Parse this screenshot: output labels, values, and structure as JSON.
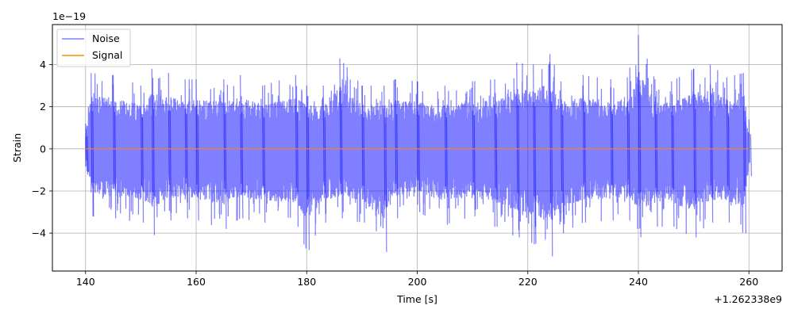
{
  "chart_data": {
    "type": "line",
    "xlabel": "Time [s]",
    "ylabel": "Strain",
    "x_offset_label": "+1.262338e9",
    "y_scale_label": "1e−19",
    "xlim": [
      134,
      266
    ],
    "ylim": [
      -5.8,
      5.9
    ],
    "x_ticks": [
      140,
      160,
      180,
      200,
      220,
      240,
      260
    ],
    "x_tick_labels": [
      "140",
      "160",
      "180",
      "200",
      "220",
      "240",
      "260"
    ],
    "y_ticks": [
      -4,
      -2,
      0,
      2,
      4
    ],
    "y_tick_labels": [
      "−4",
      "−2",
      "0",
      "2",
      "4"
    ],
    "grid": true,
    "legend_position": "top-left",
    "series": [
      {
        "name": "Noise",
        "color": "#0000ff",
        "opacity": 0.5,
        "x_range": [
          140,
          260
        ],
        "envelope": {
          "x": [
            140,
            141,
            145,
            150,
            152,
            155,
            158,
            160,
            165,
            168,
            172,
            178,
            180,
            183,
            186,
            190,
            194,
            196,
            200,
            205,
            210,
            214,
            218,
            221,
            224,
            226,
            230,
            235,
            238,
            240,
            243,
            246,
            250,
            253,
            256,
            259,
            260
          ],
          "upper": [
            1.2,
            3.6,
            3.5,
            3.0,
            3.8,
            3.6,
            3.3,
            3.3,
            3.3,
            3.5,
            3.0,
            3.5,
            3.0,
            3.0,
            4.3,
            3.0,
            3.0,
            3.3,
            3.2,
            3.0,
            3.2,
            3.3,
            4.1,
            4.0,
            4.5,
            3.2,
            3.5,
            3.3,
            3.4,
            5.4,
            3.3,
            3.2,
            3.8,
            4.0,
            3.4,
            3.6,
            1.4
          ],
          "lower": [
            -1.1,
            -3.2,
            -3.3,
            -3.5,
            -4.1,
            -3.4,
            -3.3,
            -3.4,
            -3.8,
            -3.3,
            -3.5,
            -3.7,
            -4.8,
            -3.5,
            -3.3,
            -3.5,
            -4.9,
            -3.3,
            -3.0,
            -3.6,
            -3.2,
            -3.7,
            -4.2,
            -4.5,
            -5.1,
            -4.0,
            -3.5,
            -3.4,
            -3.4,
            -4.2,
            -3.7,
            -3.7,
            -4.2,
            -3.5,
            -3.5,
            -4.0,
            -1.3
          ]
        }
      },
      {
        "name": "Signal",
        "color": "#ff8c00",
        "opacity": 1,
        "x": [
          140,
          260
        ],
        "values": [
          0,
          0
        ]
      }
    ]
  }
}
